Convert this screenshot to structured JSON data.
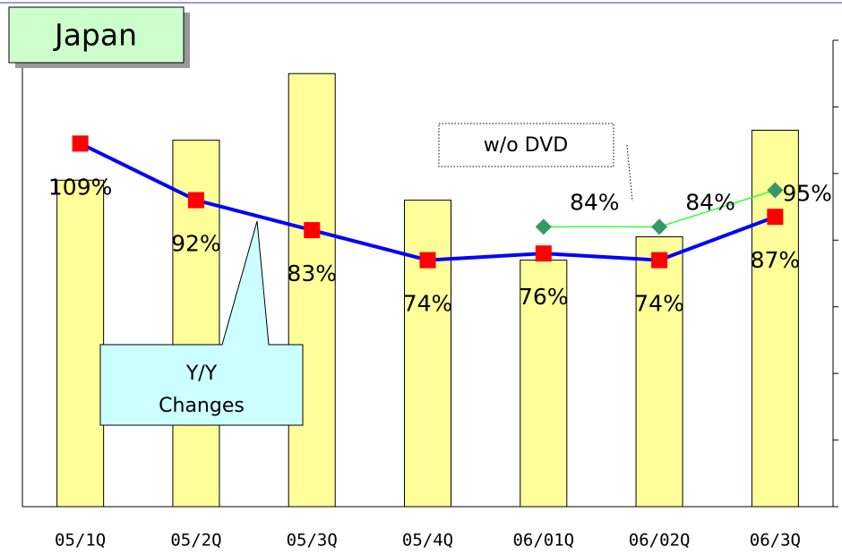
{
  "chart_data": {
    "type": "bar+line",
    "title": "Japan",
    "annotations": {
      "callout": [
        "Y/Y",
        "Changes"
      ],
      "note": "w/o DVD"
    },
    "categories": [
      "05/1Q",
      "05/2Q",
      "05/3Q",
      "05/4Q",
      "06/01Q",
      "06/02Q",
      "06/3Q"
    ],
    "ylim": [
      0,
      140
    ],
    "y2lim": [
      0,
      7
    ],
    "y2ticks": [
      0,
      1,
      2,
      3,
      4,
      5,
      6,
      7
    ],
    "series": [
      {
        "type": "bar",
        "axis": "y2",
        "color": "#ffff99",
        "values": [
          4.9,
          5.5,
          6.5,
          4.6,
          3.7,
          4.05,
          5.65
        ]
      },
      {
        "type": "line",
        "color": "#0000ff",
        "marker_color": "#ff0000",
        "values": [
          109,
          92,
          83,
          74,
          76,
          74,
          87
        ],
        "value_labels": [
          "109%",
          "92%",
          "83%",
          "74%",
          "76%",
          "74%",
          "87%"
        ]
      },
      {
        "type": "line",
        "color": "#33ff33",
        "marker_color": "#339966",
        "values": [
          null,
          null,
          null,
          null,
          84,
          84,
          95
        ],
        "value_labels": [
          null,
          null,
          null,
          null,
          "84%",
          "84%",
          "95%"
        ]
      }
    ]
  }
}
